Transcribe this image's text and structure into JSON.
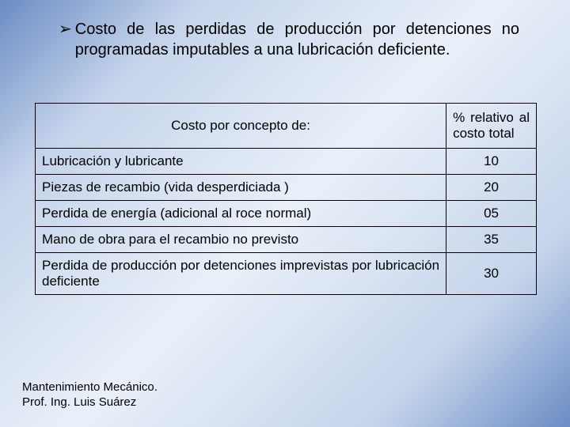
{
  "bullet": {
    "glyph": "➢",
    "text": "Costo de las perdidas de producción por detenciones no programadas imputables a una lubricación deficiente."
  },
  "table": {
    "header": {
      "col1": "Costo por concepto de:",
      "col2": "% relativo al costo total"
    },
    "rows": [
      {
        "label": "Lubricación y lubricante",
        "value": "10",
        "justify": false
      },
      {
        "label": "Piezas de recambio (vida desperdiciada )",
        "value": "20",
        "justify": false
      },
      {
        "label": "Perdida de energía (adicional al roce normal)",
        "value": "05",
        "justify": false
      },
      {
        "label": "Mano de obra para el recambio no previsto",
        "value": "35",
        "justify": false
      },
      {
        "label": "Perdida de producción por detenciones imprevistas por lubricación deficiente",
        "value": "30",
        "justify": true
      }
    ]
  },
  "footer": {
    "line1": "Mantenimiento Mecánico.",
    "line2": "Prof. Ing. Luis Suárez"
  }
}
